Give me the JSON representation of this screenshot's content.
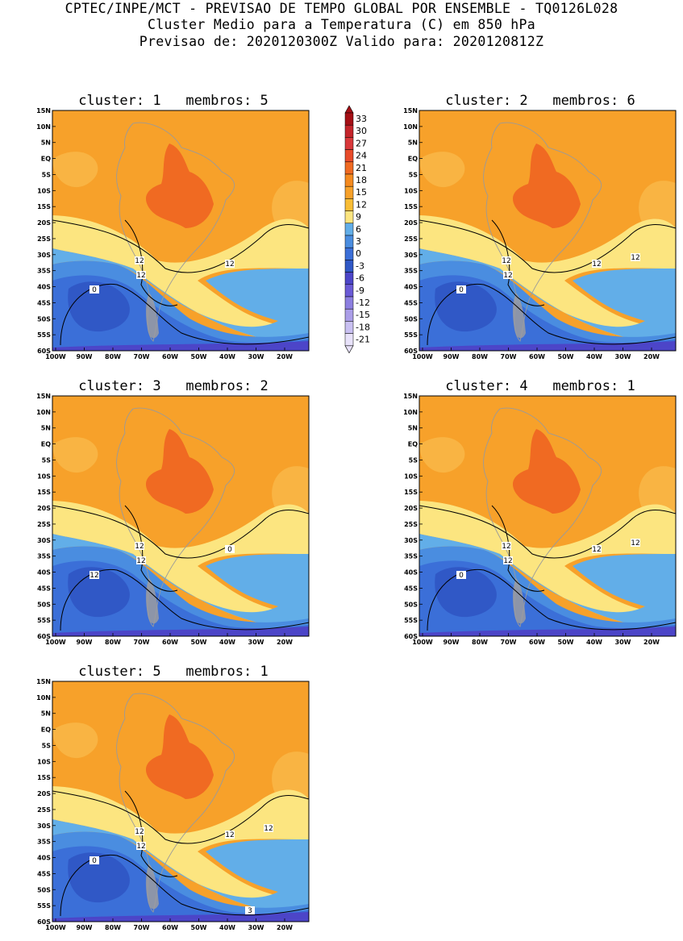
{
  "header": {
    "line1": "CPTEC/INPE/MCT - PREVISAO DE TEMPO GLOBAL POR ENSEMBLE - TQ0126L028",
    "line2": "Cluster Medio para a Temperatura (C) em 850 hPa",
    "line3": "Previsao de: 2020120300Z   Valido para: 2020120812Z"
  },
  "lat_labels": [
    "15N",
    "10N",
    "5N",
    "EQ",
    "5S",
    "10S",
    "15S",
    "20S",
    "25S",
    "30S",
    "35S",
    "40S",
    "45S",
    "50S",
    "55S",
    "60S"
  ],
  "lon_labels": [
    "100W",
    "90W",
    "80W",
    "70W",
    "60W",
    "50W",
    "40W",
    "30W",
    "20W"
  ],
  "panels": [
    {
      "cluster_label": "cluster:",
      "cluster": "1",
      "members_label": "membros:",
      "members": "5",
      "contour_labels": [
        "12",
        "12",
        "12",
        "0"
      ]
    },
    {
      "cluster_label": "cluster:",
      "cluster": "2",
      "members_label": "membros:",
      "members": "6",
      "contour_labels": [
        "12",
        "12",
        "12",
        "0",
        "12"
      ]
    },
    {
      "cluster_label": "cluster:",
      "cluster": "3",
      "members_label": "membros:",
      "members": "2",
      "contour_labels": [
        "12",
        "12",
        "0",
        "12"
      ]
    },
    {
      "cluster_label": "cluster:",
      "cluster": "4",
      "members_label": "membros:",
      "members": "1",
      "contour_labels": [
        "12",
        "12",
        "12",
        "0",
        "12"
      ]
    },
    {
      "cluster_label": "cluster:",
      "cluster": "5",
      "members_label": "membros:",
      "members": "1",
      "contour_labels": [
        "12",
        "12",
        "12",
        "0",
        "12",
        "3"
      ]
    }
  ],
  "colorbar": {
    "levels": [
      "33",
      "30",
      "27",
      "24",
      "21",
      "18",
      "15",
      "12",
      "9",
      "6",
      "3",
      "0",
      "-3",
      "-6",
      "-9",
      "-12",
      "-15",
      "-18",
      "-21"
    ],
    "colors": [
      "#a50f15",
      "#c4242a",
      "#d9383a",
      "#e84b2a",
      "#f06a22",
      "#f58a1f",
      "#f7a12a",
      "#f9bd35",
      "#fce580",
      "#62aee8",
      "#4a8de0",
      "#3b6fd8",
      "#3058c6",
      "#4c45c8",
      "#6a5ad6",
      "#8c7fe0",
      "#ab9ee8",
      "#c9c0f2",
      "#e8e2fa"
    ]
  }
}
